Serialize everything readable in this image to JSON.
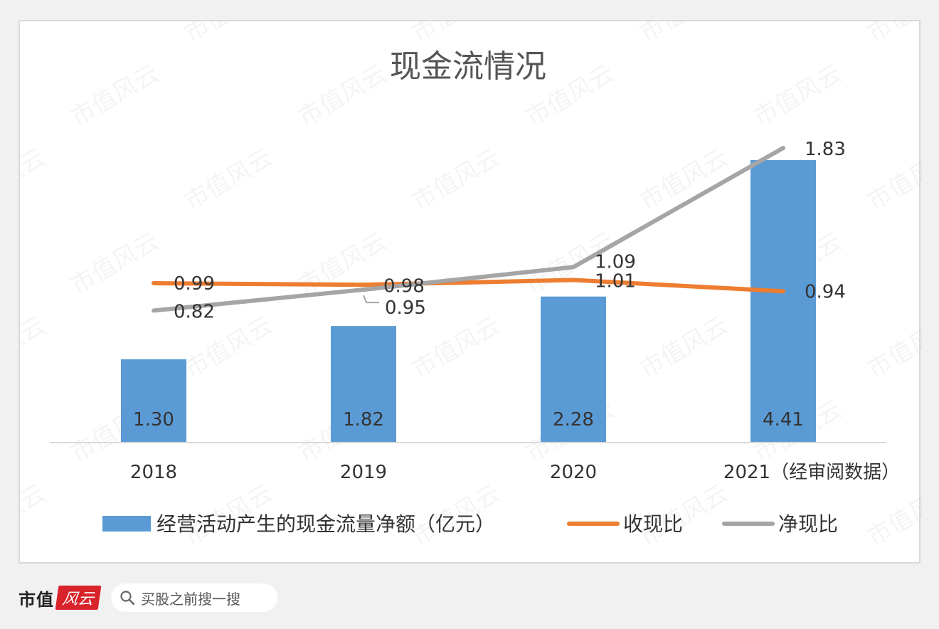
{
  "chart_data": {
    "type": "bar",
    "title": "现金流情况",
    "categories": [
      "2018",
      "2019",
      "2020",
      "2021（经审阅数据）"
    ],
    "series": [
      {
        "name": "经营活动产生的现金流量净额（亿元）",
        "kind": "bar",
        "color": "#5b9bd5",
        "values": [
          1.3,
          1.82,
          2.28,
          4.41
        ],
        "labels": [
          "1.30",
          "1.82",
          "2.28",
          "4.41"
        ]
      },
      {
        "name": "收现比",
        "kind": "line",
        "color": "#ed7d31",
        "values": [
          0.99,
          0.98,
          1.01,
          0.94
        ],
        "labels": [
          "0.99",
          "0.98",
          "1.01",
          "0.94"
        ]
      },
      {
        "name": "净现比",
        "kind": "line",
        "color": "#a5a5a5",
        "values": [
          0.82,
          0.95,
          1.09,
          1.83
        ],
        "labels": [
          "0.82",
          "0.95",
          "1.09",
          "1.83"
        ]
      }
    ],
    "bar_axis_range": [
      0,
      4.41
    ],
    "line_axis_range": [
      0,
      1.83
    ],
    "legend_position": "bottom",
    "grid": false
  },
  "watermark": "市值风云",
  "footer": {
    "brand": "市值",
    "logo_text": "风云",
    "search_placeholder": "买股之前搜一搜",
    "search_icon": "search-icon"
  }
}
